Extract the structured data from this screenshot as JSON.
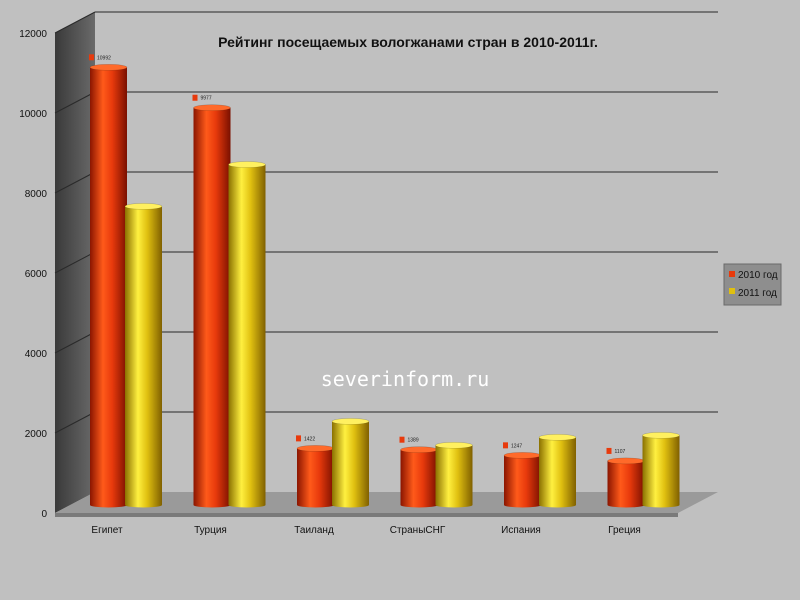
{
  "chart_data": {
    "type": "bar",
    "title": "Рейтинг посещаемых вологжанами стран в 2010-2011г.",
    "categories": [
      "Египет",
      "Турция",
      "Таиланд",
      "СтраныСНГ",
      "Испания",
      "Греция"
    ],
    "series": [
      {
        "name": "2010 год",
        "values": [
          10992,
          9977,
          1422,
          1389,
          1247,
          1107
        ],
        "color": "#e83a0c",
        "labels": [
          "10992",
          "9977",
          "1422",
          "1389",
          "1247",
          "1107"
        ]
      },
      {
        "name": "2011 год",
        "values": [
          7500,
          8550,
          2100,
          1500,
          1700,
          1750
        ],
        "color": "#e0c010"
      }
    ],
    "yticks": [
      "0",
      "2000",
      "4000",
      "6000",
      "8000",
      "10000",
      "12000"
    ],
    "ylim": [
      0,
      12000
    ],
    "grid": true,
    "legend_position": "right",
    "watermark": "severinform.ru"
  }
}
